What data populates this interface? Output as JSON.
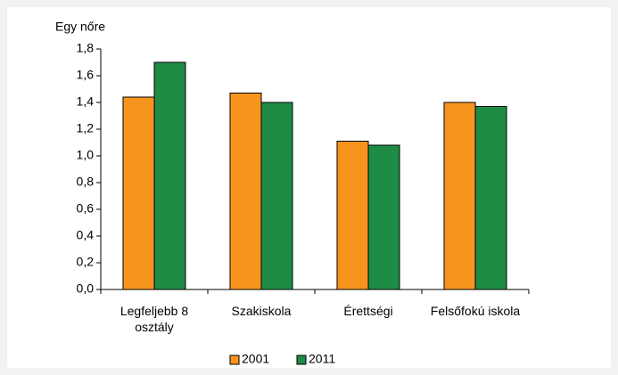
{
  "chart_data": {
    "type": "bar",
    "y_axis_label": "Egy nőre",
    "categories": [
      "Legfeljebb 8 osztály",
      "Szakiskola",
      "Érettségi",
      "Felsőfokú iskola"
    ],
    "series": [
      {
        "name": "2001",
        "color": "#f7941d",
        "values": [
          1.44,
          1.47,
          1.11,
          1.4
        ]
      },
      {
        "name": "2011",
        "color": "#1e8c45",
        "values": [
          1.7,
          1.4,
          1.08,
          1.37
        ]
      }
    ],
    "ylim": [
      0,
      1.8
    ],
    "yticks": [
      {
        "value": 0,
        "label": "0,0"
      },
      {
        "value": 0.2,
        "label": "0,2"
      },
      {
        "value": 0.4,
        "label": "0,4"
      },
      {
        "value": 0.6,
        "label": "0,6"
      },
      {
        "value": 0.8,
        "label": "0,8"
      },
      {
        "value": 1.0,
        "label": "1,0"
      },
      {
        "value": 1.2,
        "label": "1,2"
      },
      {
        "value": 1.4,
        "label": "1,4"
      },
      {
        "value": 1.6,
        "label": "1,6"
      },
      {
        "value": 1.8,
        "label": "1,8"
      }
    ],
    "legend": "bottom"
  }
}
